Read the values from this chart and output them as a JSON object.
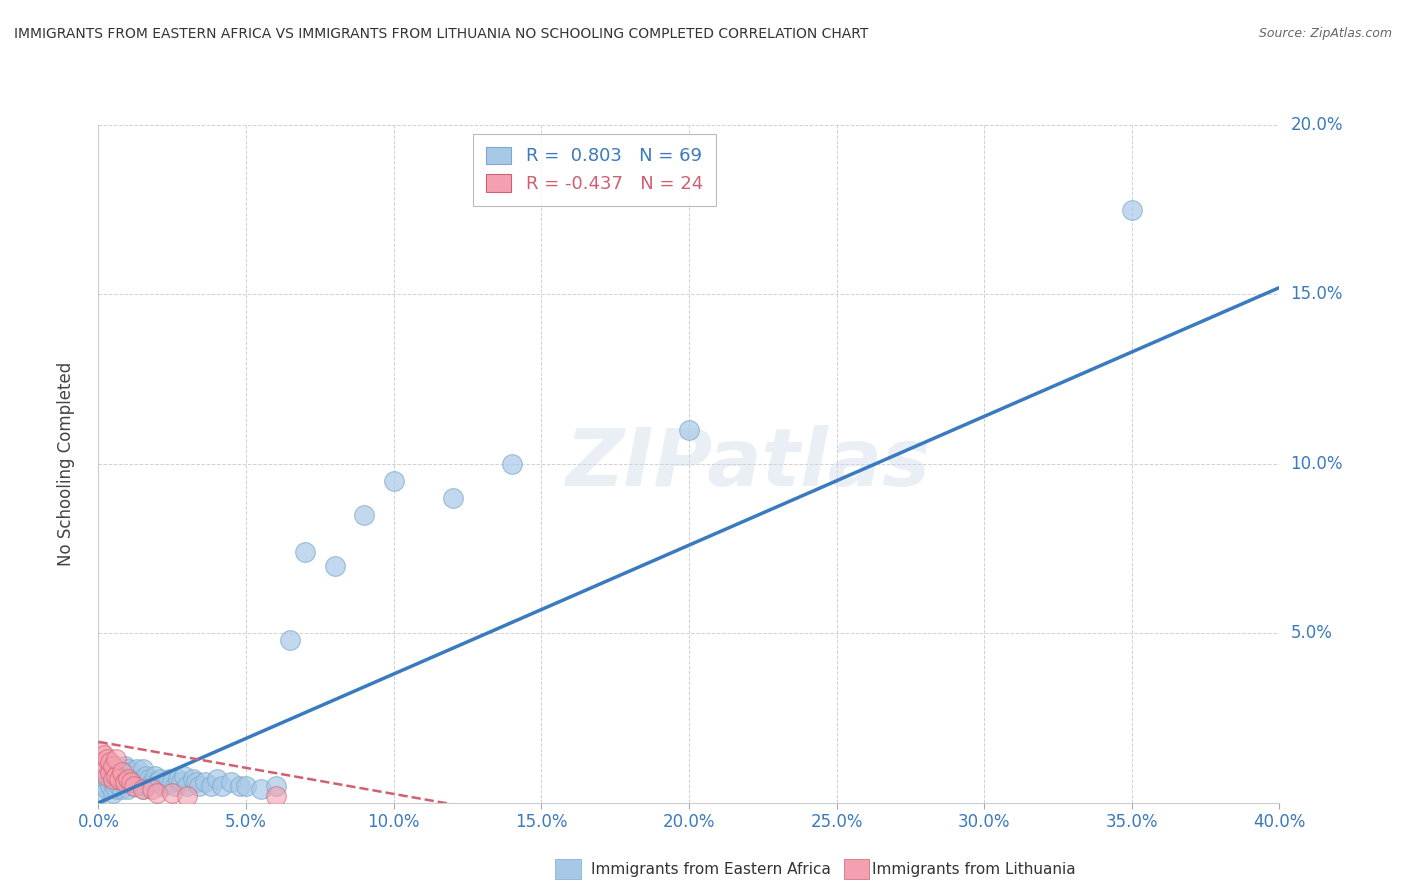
{
  "title": "IMMIGRANTS FROM EASTERN AFRICA VS IMMIGRANTS FROM LITHUANIA NO SCHOOLING COMPLETED CORRELATION CHART",
  "source": "Source: ZipAtlas.com",
  "ylabel": "No Schooling Completed",
  "blue_color": "#a8c8e8",
  "blue_edge_color": "#7aaac8",
  "blue_line_color": "#3a7abf",
  "pink_color": "#f4a0b0",
  "pink_edge_color": "#d06070",
  "pink_line_color": "#d06070",
  "watermark": "ZIPatlas",
  "xlim": [
    0.0,
    0.4
  ],
  "ylim": [
    0.0,
    0.2
  ],
  "x_ticks": [
    0.0,
    0.05,
    0.1,
    0.15,
    0.2,
    0.25,
    0.3,
    0.35,
    0.4
  ],
  "y_ticks": [
    0.0,
    0.05,
    0.1,
    0.15,
    0.2
  ],
  "blue_r": 0.803,
  "blue_n": 69,
  "pink_r": -0.437,
  "pink_n": 24,
  "blue_line_x0": 0.0,
  "blue_line_y0": 0.0,
  "blue_line_x1": 0.4,
  "blue_line_y1": 0.152,
  "pink_line_x0": 0.0,
  "pink_line_y0": 0.018,
  "pink_line_x1": 0.13,
  "pink_line_y1": -0.002,
  "blue_scatter_x": [
    0.001,
    0.002,
    0.003,
    0.003,
    0.004,
    0.004,
    0.005,
    0.005,
    0.005,
    0.006,
    0.006,
    0.006,
    0.007,
    0.007,
    0.008,
    0.008,
    0.009,
    0.009,
    0.009,
    0.01,
    0.01,
    0.01,
    0.011,
    0.011,
    0.012,
    0.012,
    0.013,
    0.013,
    0.014,
    0.015,
    0.015,
    0.015,
    0.016,
    0.016,
    0.017,
    0.018,
    0.019,
    0.02,
    0.021,
    0.022,
    0.023,
    0.024,
    0.025,
    0.026,
    0.027,
    0.028,
    0.029,
    0.03,
    0.032,
    0.033,
    0.034,
    0.036,
    0.038,
    0.04,
    0.042,
    0.045,
    0.048,
    0.05,
    0.055,
    0.06,
    0.065,
    0.07,
    0.08,
    0.09,
    0.1,
    0.12,
    0.14,
    0.2,
    0.35
  ],
  "blue_scatter_y": [
    0.003,
    0.005,
    0.004,
    0.007,
    0.005,
    0.008,
    0.003,
    0.006,
    0.009,
    0.004,
    0.007,
    0.01,
    0.005,
    0.008,
    0.004,
    0.007,
    0.005,
    0.008,
    0.011,
    0.004,
    0.007,
    0.01,
    0.006,
    0.009,
    0.005,
    0.008,
    0.006,
    0.01,
    0.007,
    0.004,
    0.007,
    0.01,
    0.005,
    0.008,
    0.007,
    0.006,
    0.008,
    0.006,
    0.007,
    0.005,
    0.006,
    0.007,
    0.006,
    0.005,
    0.007,
    0.006,
    0.008,
    0.005,
    0.007,
    0.006,
    0.005,
    0.006,
    0.005,
    0.007,
    0.005,
    0.006,
    0.005,
    0.005,
    0.004,
    0.005,
    0.048,
    0.074,
    0.07,
    0.085,
    0.095,
    0.09,
    0.1,
    0.11,
    0.175
  ],
  "pink_scatter_x": [
    0.001,
    0.001,
    0.002,
    0.002,
    0.003,
    0.003,
    0.004,
    0.004,
    0.005,
    0.005,
    0.006,
    0.006,
    0.007,
    0.008,
    0.009,
    0.01,
    0.011,
    0.012,
    0.015,
    0.018,
    0.02,
    0.025,
    0.03,
    0.06
  ],
  "pink_scatter_y": [
    0.012,
    0.015,
    0.01,
    0.014,
    0.008,
    0.013,
    0.009,
    0.012,
    0.007,
    0.011,
    0.008,
    0.013,
    0.007,
    0.009,
    0.006,
    0.007,
    0.006,
    0.005,
    0.004,
    0.004,
    0.003,
    0.003,
    0.002,
    0.002
  ]
}
